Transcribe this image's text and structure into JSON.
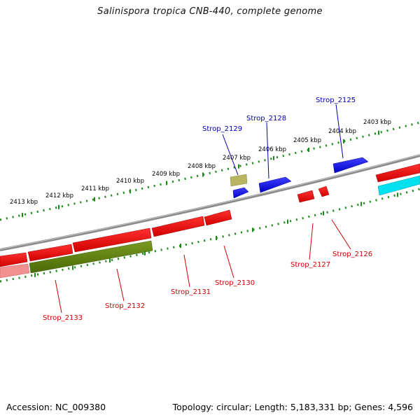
{
  "title": "Salinispora tropica CNB-440, complete genome",
  "footer": {
    "accession": "Accession: NC_009380",
    "summary": "Topology: circular; Length: 5,183,331 bp; Genes: 4,596"
  },
  "ticks": [
    {
      "label": "2403 kbp"
    },
    {
      "label": "2404 kbp"
    },
    {
      "label": "2405 kbp"
    },
    {
      "label": "2406 kbp"
    },
    {
      "label": "2407 kbp"
    },
    {
      "label": "2408 kbp"
    },
    {
      "label": "2409 kbp"
    },
    {
      "label": "2410 kbp"
    },
    {
      "label": "2411 kbp"
    },
    {
      "label": "2412 kbp"
    },
    {
      "label": "2413 kbp"
    }
  ],
  "gene_labels": {
    "strop_2125": "Strop_2125",
    "strop_2128": "Strop_2128",
    "strop_2129": "Strop_2129",
    "strop_2126": "Strop_2126",
    "strop_2127": "Strop_2127",
    "strop_2130": "Strop_2130",
    "strop_2131": "Strop_2131",
    "strop_2132": "Strop_2132",
    "strop_2133": "Strop_2133"
  },
  "colors": {
    "forward_cds": "#0000ee",
    "reverse_cds": "#ee0000",
    "forward_label": "#0000aa",
    "reverse_label": "#cc0000",
    "olive_feature": "#5a7a10",
    "khaki_feature": "#b8b460",
    "cyan_feature": "#00e0ee",
    "backbone": "#808080",
    "tick_green": "#1a8a1a"
  }
}
